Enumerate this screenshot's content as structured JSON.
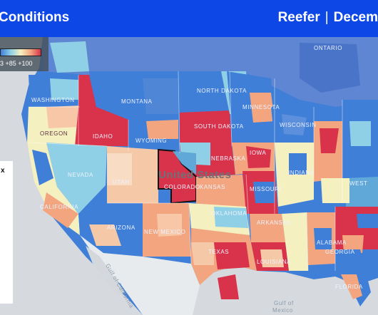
{
  "header": {
    "title": "Conditions",
    "equipment": "Reefer",
    "separator": "|",
    "period": "Decem"
  },
  "legend": {
    "ticks": "3   +85  +100"
  },
  "side_panel": {
    "text": "x"
  },
  "map": {
    "country_label": "United States",
    "labels": {
      "ontario": "ONTARIO",
      "washington": "WASHINGTON",
      "montana": "MONTANA",
      "north_dakota": "NORTH DAKOTA",
      "minnesota": "MINNESOTA",
      "oregon": "OREGON",
      "idaho": "IDAHO",
      "south_dakota": "SOUTH DAKOTA",
      "wisconsin": "WISCONSIN",
      "wyoming": "WYOMING",
      "nebraska": "NEBRASKA",
      "iowa": "IOWA",
      "nevada": "NEVADA",
      "utah": "UTAH",
      "colorado": "COLORADO",
      "kansas": "KANSAS",
      "indiana": "INDIANA",
      "california": "CALIFORNIA",
      "missouri": "MISSOURI",
      "west": "WEST",
      "oklahoma": "OKLAHOMA",
      "arizona": "ARIZONA",
      "new_mexico": "NEW MEXICO",
      "arkansas": "ARKANSAS",
      "alabama": "ALABAMA",
      "texas": "TEXAS",
      "louisiana": "LOUISIANA",
      "georgia": "GEORGIA",
      "florida": "FLORIDA",
      "gulf_of_mexico": "Gulf of\nMexico",
      "gulf_of_california": "Gulf of California"
    }
  },
  "colors": {
    "header_bg": "#0d47e6",
    "hot": "#d8334a",
    "warm": "#f2a57f",
    "neutral": "#f5f0c0",
    "cool": "#8fd0e6",
    "cold": "#3f7fd8"
  }
}
